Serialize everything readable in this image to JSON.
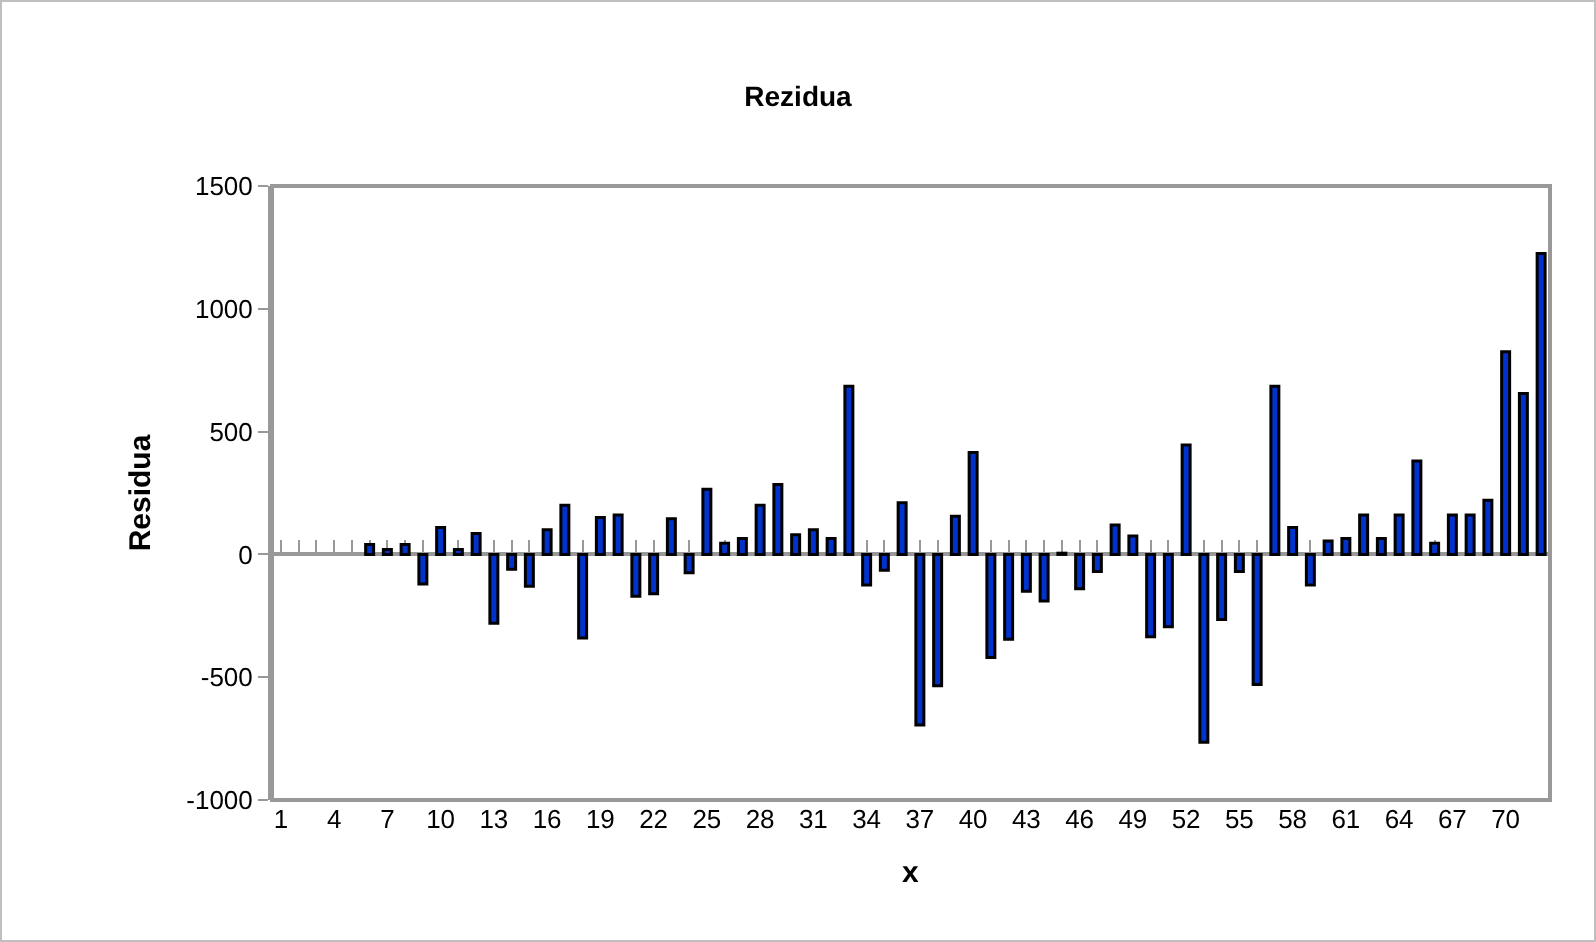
{
  "chart_data": {
    "type": "bar",
    "title": "Rezidua",
    "xlabel": "x",
    "ylabel": "Residua",
    "categories": [
      "1",
      null,
      null,
      "4",
      null,
      null,
      "7",
      null,
      null,
      "10",
      null,
      null,
      "13",
      null,
      null,
      "16",
      null,
      null,
      "19",
      null,
      null,
      "22",
      null,
      null,
      "25",
      null,
      null,
      "28",
      null,
      null,
      "31",
      null,
      null,
      "34",
      null,
      null,
      "37",
      null,
      null,
      "40",
      null,
      null,
      "43",
      null,
      null,
      "46",
      null,
      null,
      "49",
      null,
      null,
      "52",
      null,
      null,
      "55",
      null,
      null,
      "58",
      null,
      null,
      "61",
      null,
      null,
      "64",
      null,
      null,
      "67",
      null,
      null,
      "70",
      null,
      null
    ],
    "series": [
      {
        "color": "#0033cc",
        "values": [
          0,
          0,
          0,
          0,
          0,
          40,
          20,
          40,
          -120,
          110,
          20,
          85,
          -280,
          -60,
          -130,
          100,
          200,
          -340,
          150,
          160,
          -170,
          -160,
          145,
          -75,
          265,
          45,
          65,
          200,
          285,
          80,
          100,
          65,
          685,
          -125,
          -65,
          210,
          -695,
          -535,
          155,
          415,
          -420,
          -345,
          -150,
          -190,
          5,
          -140,
          -70,
          120,
          75,
          -335,
          -295,
          445,
          -765,
          -265,
          -70,
          -530,
          685,
          110,
          -125,
          55,
          65,
          160,
          65,
          160,
          380,
          45,
          160,
          160,
          220,
          825,
          655,
          1225
        ]
      }
    ],
    "ylim": [
      -1000,
      1500
    ],
    "yticks": [
      -1000,
      -500,
      0,
      500,
      1000,
      1500
    ]
  }
}
